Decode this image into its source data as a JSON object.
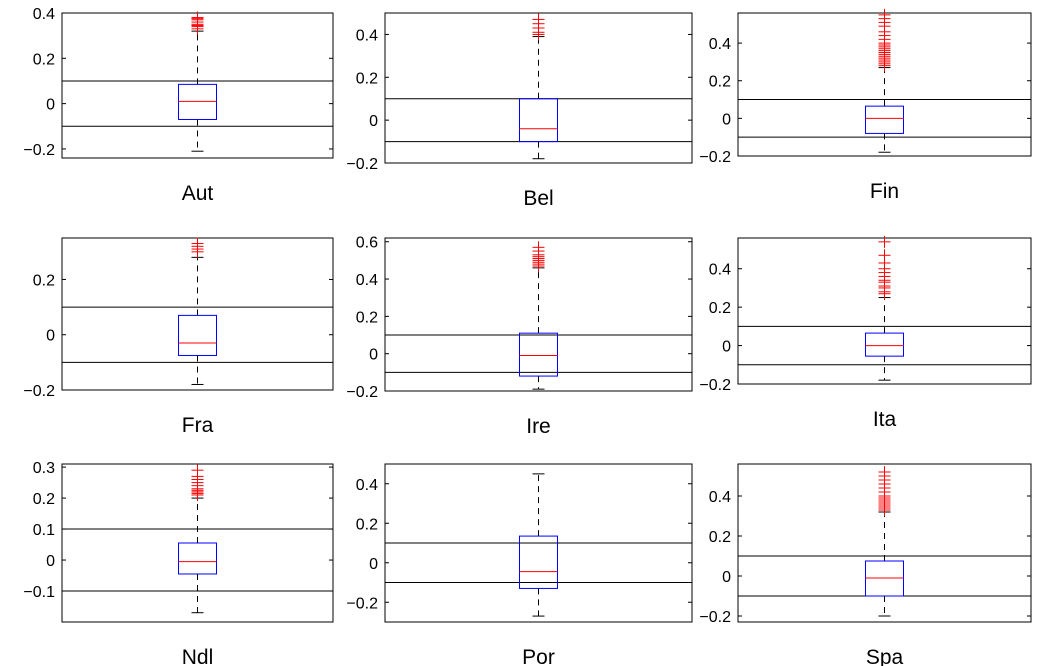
{
  "chart_data": [
    {
      "type": "boxplot",
      "xlabel": "Aut",
      "ylim": [
        -0.24,
        0.4
      ],
      "yticks": [
        -0.2,
        0,
        0.2,
        0.4
      ],
      "yticklabels": [
        "−0.2",
        "0",
        "0.2",
        "0.4"
      ],
      "reference_lines": [
        0.1,
        -0.1
      ],
      "box": {
        "q1": -0.07,
        "median": 0.01,
        "q3": 0.085,
        "whisker_low": -0.21,
        "whisker_high": 0.32
      },
      "outliers": [
        0.33,
        0.34,
        0.345,
        0.35,
        0.36,
        0.37,
        0.375,
        0.38
      ]
    },
    {
      "type": "boxplot",
      "xlabel": "Bel",
      "ylim": [
        -0.2,
        0.5
      ],
      "yticks": [
        -0.2,
        0,
        0.2,
        0.4
      ],
      "yticklabels": [
        "−0.2",
        "0",
        "0.2",
        "0.4"
      ],
      "reference_lines": [
        0.1,
        -0.1
      ],
      "box": {
        "q1": -0.1,
        "median": -0.04,
        "q3": 0.1,
        "whisker_low": -0.18,
        "whisker_high": 0.39
      },
      "outliers": [
        0.4,
        0.41,
        0.43,
        0.45,
        0.47
      ]
    },
    {
      "type": "boxplot",
      "xlabel": "Fin",
      "ylim": [
        -0.2,
        0.56
      ],
      "yticks": [
        -0.2,
        0,
        0.2,
        0.4
      ],
      "yticklabels": [
        "−0.2",
        "0",
        "0.2",
        "0.4"
      ],
      "reference_lines": [
        0.1,
        -0.1
      ],
      "box": {
        "q1": -0.08,
        "median": 0.0,
        "q3": 0.065,
        "whisker_low": -0.18,
        "whisker_high": 0.27
      },
      "outliers": [
        0.28,
        0.29,
        0.3,
        0.31,
        0.32,
        0.33,
        0.34,
        0.35,
        0.36,
        0.37,
        0.38,
        0.39,
        0.4,
        0.42,
        0.44,
        0.46,
        0.49,
        0.51,
        0.53,
        0.55
      ]
    },
    {
      "type": "boxplot",
      "xlabel": "Fra",
      "ylim": [
        -0.2,
        0.35
      ],
      "yticks": [
        -0.2,
        0,
        0.2
      ],
      "yticklabels": [
        "−0.2",
        "0",
        "0.2"
      ],
      "reference_lines": [
        0.1,
        -0.1
      ],
      "box": {
        "q1": -0.075,
        "median": -0.03,
        "q3": 0.07,
        "whisker_low": -0.18,
        "whisker_high": 0.28
      },
      "outliers": [
        0.3,
        0.31,
        0.32,
        0.33
      ]
    },
    {
      "type": "boxplot",
      "xlabel": "Ire",
      "ylim": [
        -0.2,
        0.62
      ],
      "yticks": [
        -0.2,
        0,
        0.2,
        0.4,
        0.6
      ],
      "yticklabels": [
        "−0.2",
        "0",
        "0.2",
        "0.4",
        "0.6"
      ],
      "reference_lines": [
        0.1,
        -0.1
      ],
      "box": {
        "q1": -0.12,
        "median": -0.01,
        "q3": 0.11,
        "whisker_low": -0.19,
        "whisker_high": 0.46
      },
      "outliers": [
        0.47,
        0.48,
        0.49,
        0.5,
        0.51,
        0.52,
        0.53,
        0.55,
        0.57
      ]
    },
    {
      "type": "boxplot",
      "xlabel": "Ita",
      "ylim": [
        -0.2,
        0.56
      ],
      "yticks": [
        -0.2,
        0,
        0.2,
        0.4
      ],
      "yticklabels": [
        "−0.2",
        "0",
        "0.2",
        "0.4"
      ],
      "reference_lines": [
        0.1,
        -0.1
      ],
      "box": {
        "q1": -0.055,
        "median": 0.0,
        "q3": 0.065,
        "whisker_low": -0.18,
        "whisker_high": 0.25
      },
      "outliers": [
        0.27,
        0.28,
        0.3,
        0.31,
        0.33,
        0.34,
        0.36,
        0.38,
        0.4,
        0.43,
        0.47,
        0.54
      ]
    },
    {
      "type": "boxplot",
      "xlabel": "Ndl",
      "ylim": [
        -0.2,
        0.31
      ],
      "yticks": [
        -0.1,
        0,
        0.1,
        0.2,
        0.3
      ],
      "yticklabels": [
        "−0.1",
        "0",
        "0.1",
        "0.2",
        "0.3"
      ],
      "reference_lines": [
        0.1,
        -0.1
      ],
      "box": {
        "q1": -0.045,
        "median": -0.005,
        "q3": 0.055,
        "whisker_low": -0.17,
        "whisker_high": 0.2
      },
      "outliers": [
        0.21,
        0.215,
        0.22,
        0.225,
        0.23,
        0.24,
        0.25,
        0.26,
        0.27,
        0.29
      ]
    },
    {
      "type": "boxplot",
      "xlabel": "Por",
      "ylim": [
        -0.3,
        0.5
      ],
      "yticks": [
        -0.2,
        0,
        0.2,
        0.4
      ],
      "yticklabels": [
        "−0.2",
        "0",
        "0.2",
        "0.4"
      ],
      "reference_lines": [
        0.1,
        -0.1
      ],
      "box": {
        "q1": -0.13,
        "median": -0.045,
        "q3": 0.135,
        "whisker_low": -0.27,
        "whisker_high": 0.45
      },
      "outliers": []
    },
    {
      "type": "boxplot",
      "xlabel": "Spa",
      "ylim": [
        -0.23,
        0.56
      ],
      "yticks": [
        -0.2,
        0,
        0.2,
        0.4
      ],
      "yticklabels": [
        "−0.2",
        "0",
        "0.2",
        "0.4"
      ],
      "reference_lines": [
        0.1,
        -0.1
      ],
      "box": {
        "q1": -0.1,
        "median": -0.01,
        "q3": 0.075,
        "whisker_low": -0.2,
        "whisker_high": 0.32
      },
      "outliers": [
        0.33,
        0.34,
        0.35,
        0.36,
        0.37,
        0.38,
        0.39,
        0.4,
        0.42,
        0.44,
        0.46,
        0.48,
        0.5,
        0.52
      ]
    }
  ],
  "colors": {
    "box": "#0000ff",
    "median": "#ff0000",
    "outlier": "#ff0000",
    "whisker": "#000000",
    "reference_line": "#000000",
    "axes": "#000000"
  }
}
